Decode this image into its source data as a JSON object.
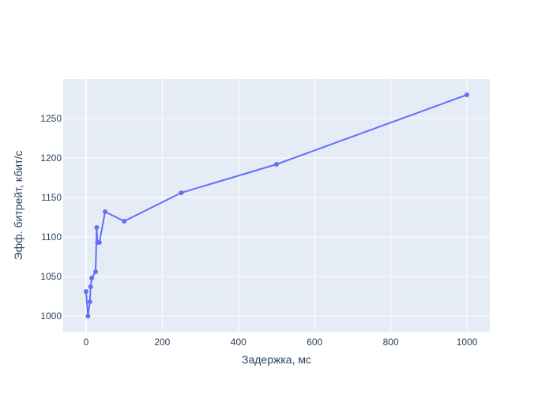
{
  "chart_data": {
    "type": "line",
    "title": "",
    "xlabel": "Задержка, мс",
    "ylabel": "Эфф. битрейт, кбит/с",
    "xlim": [
      -60,
      1060
    ],
    "ylim": [
      980,
      1300
    ],
    "x_ticks": [
      0,
      200,
      400,
      600,
      800,
      1000
    ],
    "y_ticks": [
      1000,
      1050,
      1100,
      1150,
      1200,
      1250
    ],
    "grid": true,
    "legend": "none",
    "colors": {
      "plot_bg": "#e5ecf6",
      "grid": "#ffffff",
      "series": "#636efa",
      "text": "#2a3f5f"
    },
    "series": [
      {
        "x": [
          0,
          5,
          10,
          12,
          15,
          25,
          28,
          30,
          35,
          50,
          100,
          250,
          500,
          1000
        ],
        "y": [
          1031,
          1000,
          1018,
          1037,
          1048,
          1056,
          1112,
          1093,
          1093,
          1132,
          1120,
          1156,
          1192,
          1280
        ]
      }
    ]
  }
}
